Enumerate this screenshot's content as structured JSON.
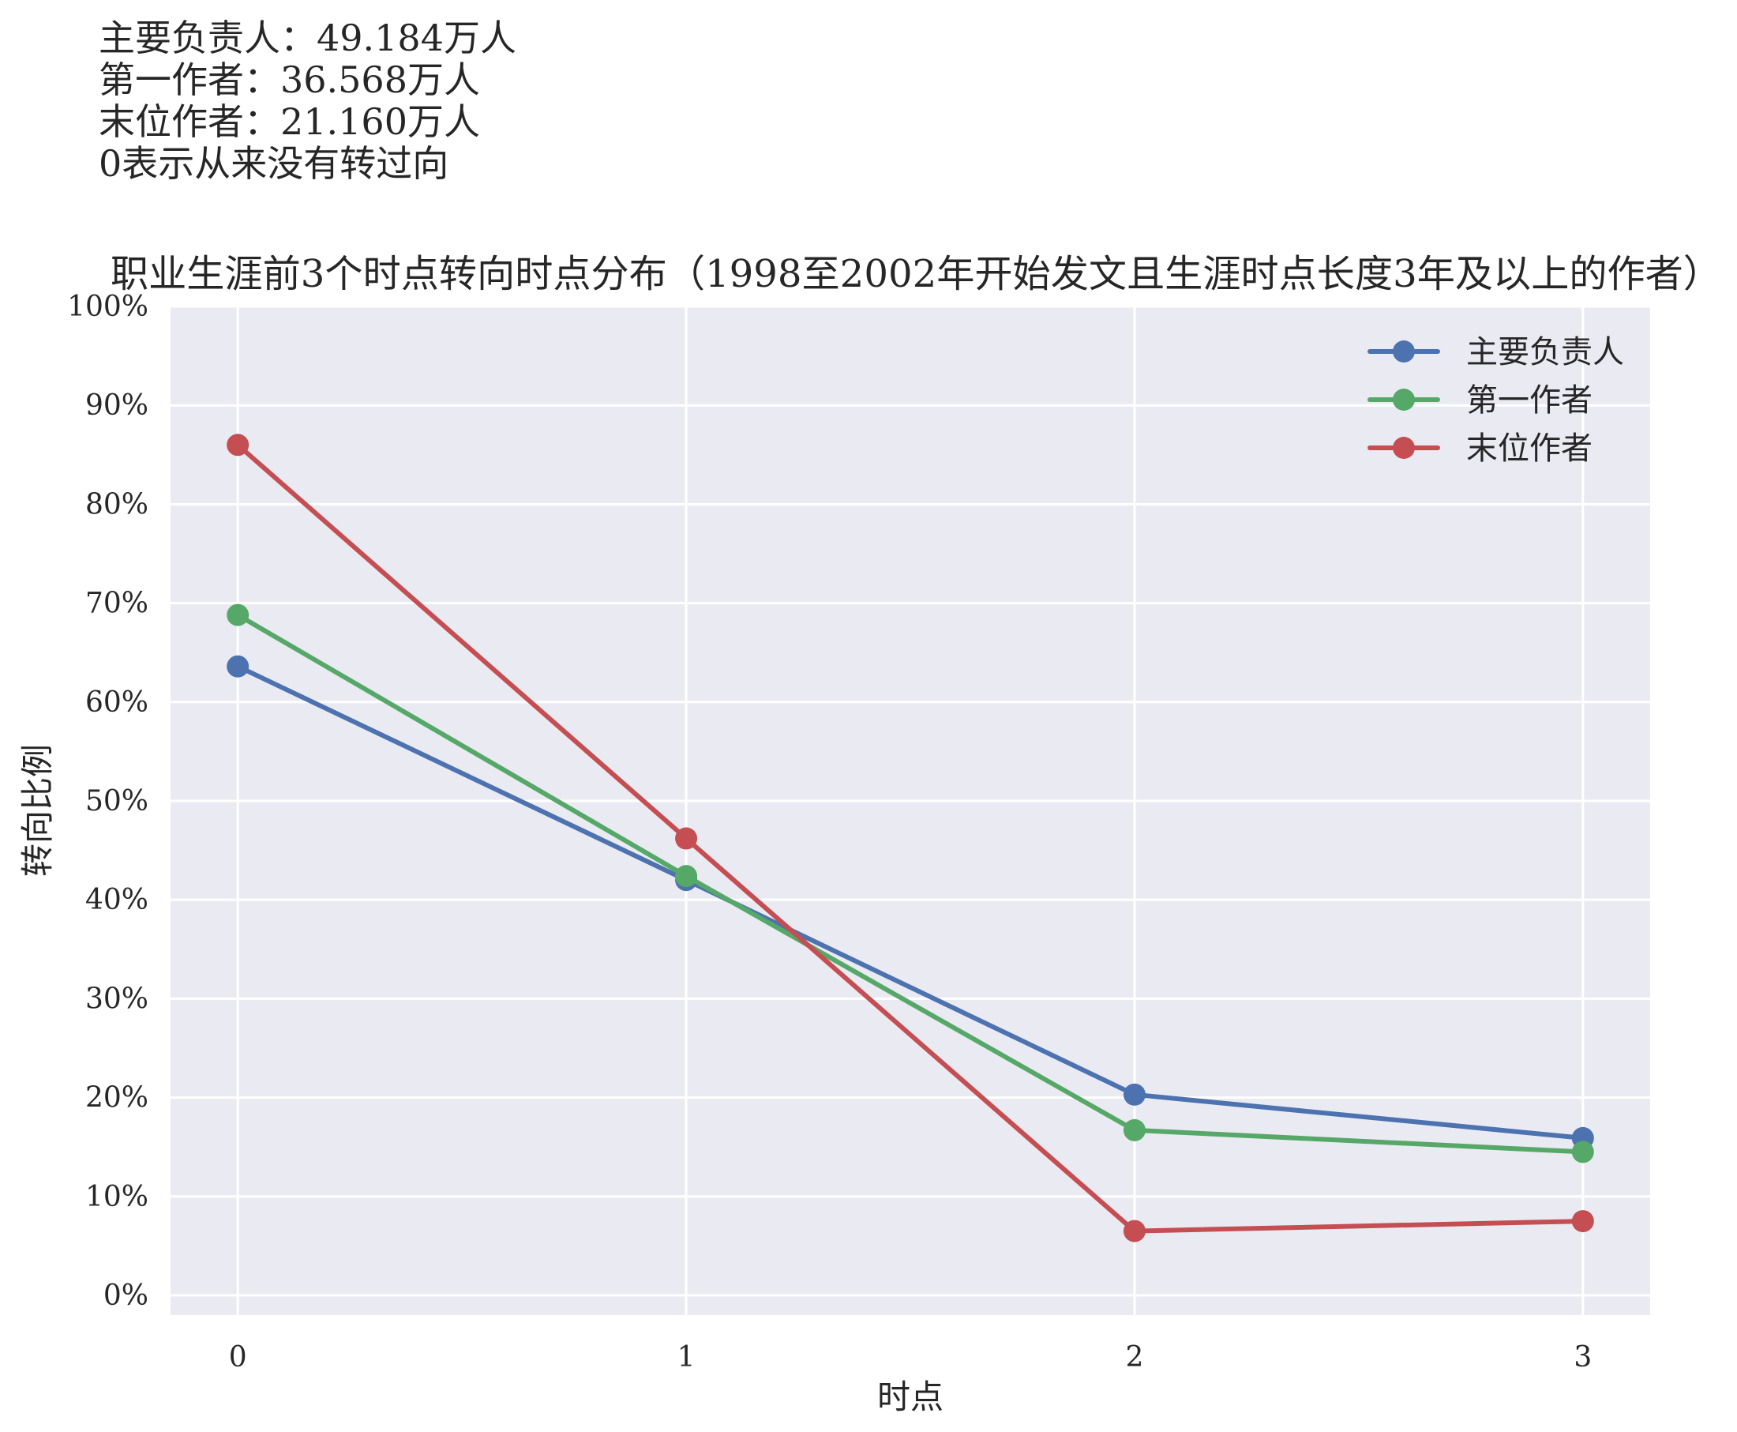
{
  "notes": [
    "主要负责人：49.184万人",
    "第一作者：36.568万人",
    "末位作者：21.160万人",
    "0表示从来没有转过向"
  ],
  "chart_data": {
    "type": "line",
    "title": "职业生涯前3个时点转向时点分布（1998至2002年开始发文且生涯时点长度3年及以上的作者）",
    "xlabel": "时点",
    "ylabel": "转向比例",
    "x": [
      0,
      1,
      2,
      3
    ],
    "x_ticks": [
      "0",
      "1",
      "2",
      "3"
    ],
    "y_ticks": [
      "0%",
      "10%",
      "20%",
      "30%",
      "40%",
      "50%",
      "60%",
      "70%",
      "80%",
      "90%",
      "100%"
    ],
    "xlim": [
      -0.15,
      3.15
    ],
    "ylim": [
      -0.02,
      1.0
    ],
    "grid": true,
    "legend_position": "top-right",
    "background": "#eaeaf2",
    "grid_color": "#ffffff",
    "series": [
      {
        "name": "主要负责人",
        "color": "#4c72b0",
        "values": [
          0.636,
          0.42,
          0.203,
          0.159
        ]
      },
      {
        "name": "第一作者",
        "color": "#55a868",
        "values": [
          0.688,
          0.424,
          0.167,
          0.145
        ]
      },
      {
        "name": "末位作者",
        "color": "#c44e52",
        "values": [
          0.86,
          0.462,
          0.065,
          0.075
        ]
      }
    ]
  }
}
